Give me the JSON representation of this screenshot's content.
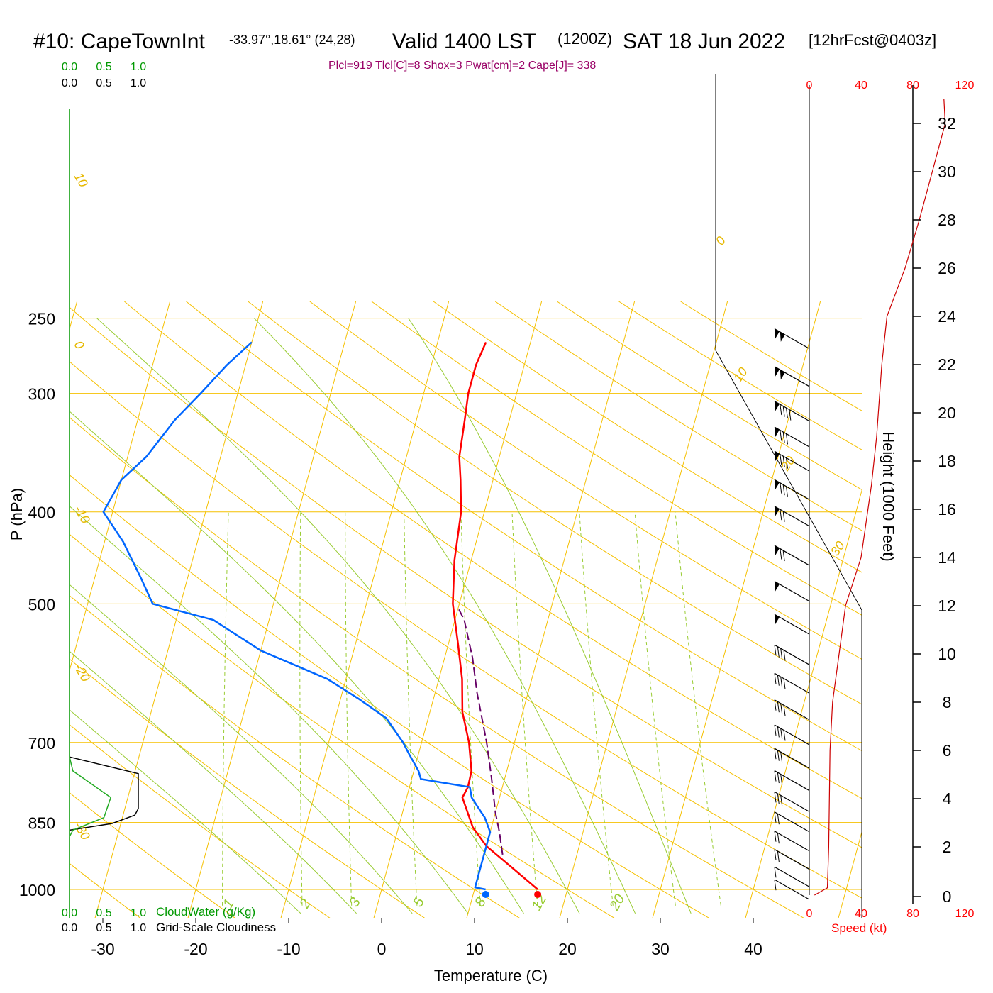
{
  "header": {
    "station": "#10: CapeTownInt",
    "coords": "-33.97°,18.61° (24,28)",
    "valid": "Valid 1400 LST",
    "zulu": "(1200Z)",
    "date": "SAT 18 Jun 2022",
    "forecast": "[12hrFcst@0403z]",
    "indices": "Plcl=919 Tlcl[C]=8 Shox=3 Pwat[cm]=2 Cape[J]= 338"
  },
  "colors": {
    "temperature": "#ff0000",
    "dewpoint": "#0066ff",
    "parcel": "#660066",
    "isotherm": "#f5c000",
    "dry_adiabat": "#f5c000",
    "moist_adiabat": "#99cc33",
    "mixing_ratio": "#99cc33",
    "cloud_water": "#22aa22",
    "cloudiness": "#000000",
    "wind_speed": "#cc0000"
  },
  "chart_data": {
    "type": "line",
    "diagram": "skew-t log-p",
    "xlabel": "Temperature (C)",
    "ylabel": "P (hPa)",
    "y2label": "Height (1000 Feet)",
    "x_ticks": [
      "-30",
      "-20",
      "-10",
      "0",
      "10",
      "20",
      "30",
      "40"
    ],
    "y_ticks": [
      "250",
      "300",
      "400",
      "500",
      "700",
      "850",
      "1000"
    ],
    "height_ticks": [
      "0",
      "2",
      "4",
      "6",
      "8",
      "10",
      "12",
      "14",
      "16",
      "18",
      "20",
      "22",
      "24",
      "26",
      "28",
      "30",
      "32"
    ],
    "isotherm_labels": [
      "10",
      "0",
      "-10",
      "-20",
      "-30",
      "0",
      "10",
      "20",
      "30"
    ],
    "mixing_ratio_labels": [
      "1",
      "2",
      "3",
      "5",
      "8",
      "12",
      "20"
    ],
    "scale_top_green": [
      "0.0",
      "0.5",
      "1.0"
    ],
    "scale_top_black": [
      "0.0",
      "0.5",
      "1.0"
    ],
    "scale_bottom_green": [
      "0.0",
      "0.5",
      "1.0"
    ],
    "scale_bottom_black": [
      "0.0",
      "0.5",
      "1.0"
    ],
    "cloud_water_label": "CloudWater (g/Kg)",
    "cloudiness_label": "Grid-Scale Cloudiness",
    "speed_ticks": [
      "0",
      "40",
      "80",
      "120"
    ],
    "speed_label": "Speed (kt)",
    "series": [
      {
        "name": "temperature",
        "points": [
          [
            16.8,
            1000
          ],
          [
            13.5,
            950
          ],
          [
            10,
            900
          ],
          [
            8,
            860
          ],
          [
            6,
            800
          ],
          [
            6.3,
            780
          ],
          [
            6.2,
            750
          ],
          [
            5.1,
            700
          ],
          [
            3.5,
            650
          ],
          [
            2.5,
            600
          ],
          [
            1,
            550
          ],
          [
            -0.7,
            500
          ],
          [
            -1.8,
            450
          ],
          [
            -2.5,
            400
          ],
          [
            -3.5,
            370
          ],
          [
            -4.3,
            350
          ],
          [
            -4.8,
            320
          ],
          [
            -5.2,
            300
          ],
          [
            -5.2,
            280
          ],
          [
            -4.8,
            265
          ]
        ]
      },
      {
        "name": "dewpoint",
        "points": [
          [
            11.2,
            1000
          ],
          [
            10,
            995
          ],
          [
            10,
            950
          ],
          [
            10,
            900
          ],
          [
            10,
            870
          ],
          [
            9,
            840
          ],
          [
            8,
            820
          ],
          [
            7,
            800
          ],
          [
            6.5,
            780
          ],
          [
            1,
            765
          ],
          [
            0.5,
            750
          ],
          [
            -1,
            720
          ],
          [
            -2,
            700
          ],
          [
            -4.5,
            660
          ],
          [
            -8,
            630
          ],
          [
            -12,
            600
          ],
          [
            -20,
            560
          ],
          [
            -26,
            520
          ],
          [
            -33,
            500
          ],
          [
            -35,
            470
          ],
          [
            -38,
            430
          ],
          [
            -41,
            400
          ],
          [
            -40,
            370
          ],
          [
            -38,
            350
          ],
          [
            -36,
            320
          ],
          [
            -34,
            300
          ],
          [
            -32,
            280
          ],
          [
            -30,
            265
          ]
        ]
      },
      {
        "name": "parcel",
        "points": [
          [
            12,
            919
          ],
          [
            11,
            870
          ],
          [
            10,
            830
          ],
          [
            8.5,
            760
          ],
          [
            7,
            700
          ],
          [
            4.5,
            620
          ],
          [
            3,
            570
          ],
          [
            1,
            520
          ],
          [
            0,
            505
          ]
        ]
      }
    ],
    "surface_markers": [
      {
        "name": "temperature",
        "x": 16.8,
        "p": 1000
      },
      {
        "name": "dewpoint",
        "x": 11.2,
        "p": 1000
      }
    ],
    "wind_speed_profile": [
      [
        4,
        0
      ],
      [
        14,
        0.3
      ],
      [
        15,
        2
      ],
      [
        16,
        6
      ],
      [
        18,
        8
      ],
      [
        23,
        10
      ],
      [
        28,
        12
      ],
      [
        40,
        14
      ],
      [
        48,
        17
      ],
      [
        52,
        19
      ],
      [
        56,
        22
      ],
      [
        60,
        24
      ],
      [
        74,
        26
      ],
      [
        85,
        28
      ],
      [
        95,
        30
      ],
      [
        105,
        32
      ],
      [
        104,
        33
      ]
    ],
    "cloudiness_profile": [
      [
        0,
        725
      ],
      [
        1.0,
        755
      ],
      [
        1.0,
        822
      ],
      [
        0.95,
        835
      ],
      [
        0.62,
        852
      ],
      [
        0,
        866
      ]
    ],
    "cloud_water_profile": [
      [
        0,
        725
      ],
      [
        0.05,
        750
      ],
      [
        0.6,
        800
      ],
      [
        0.5,
        840
      ],
      [
        0.05,
        866
      ],
      [
        0,
        880
      ]
    ],
    "wind_barbs": [
      {
        "p": 260,
        "flags": 2,
        "barbs": 0
      },
      {
        "p": 285,
        "flags": 2,
        "barbs": 0
      },
      {
        "p": 310,
        "flags": 1,
        "barbs": 4
      },
      {
        "p": 330,
        "flags": 1,
        "barbs": 3
      },
      {
        "p": 350,
        "flags": 1,
        "barbs": 3
      },
      {
        "p": 375,
        "flags": 1,
        "barbs": 3
      },
      {
        "p": 400,
        "flags": 1,
        "barbs": 2
      },
      {
        "p": 440,
        "flags": 1,
        "barbs": 2
      },
      {
        "p": 480,
        "flags": 1,
        "barbs": 0
      },
      {
        "p": 520,
        "flags": 1,
        "barbs": 0
      },
      {
        "p": 560,
        "flags": 0,
        "barbs": 4
      },
      {
        "p": 600,
        "flags": 0,
        "barbs": 4
      },
      {
        "p": 640,
        "flags": 0,
        "barbs": 4
      },
      {
        "p": 680,
        "flags": 0,
        "barbs": 4
      },
      {
        "p": 720,
        "flags": 0,
        "barbs": 3
      },
      {
        "p": 760,
        "flags": 0,
        "barbs": 3
      },
      {
        "p": 800,
        "flags": 0,
        "barbs": 3
      },
      {
        "p": 840,
        "flags": 0,
        "barbs": 2
      },
      {
        "p": 880,
        "flags": 0,
        "barbs": 2
      },
      {
        "p": 920,
        "flags": 0,
        "barbs": 2
      },
      {
        "p": 960,
        "flags": 0,
        "barbs": 1
      },
      {
        "p": 990,
        "flags": 0,
        "barbs": 1
      }
    ]
  }
}
